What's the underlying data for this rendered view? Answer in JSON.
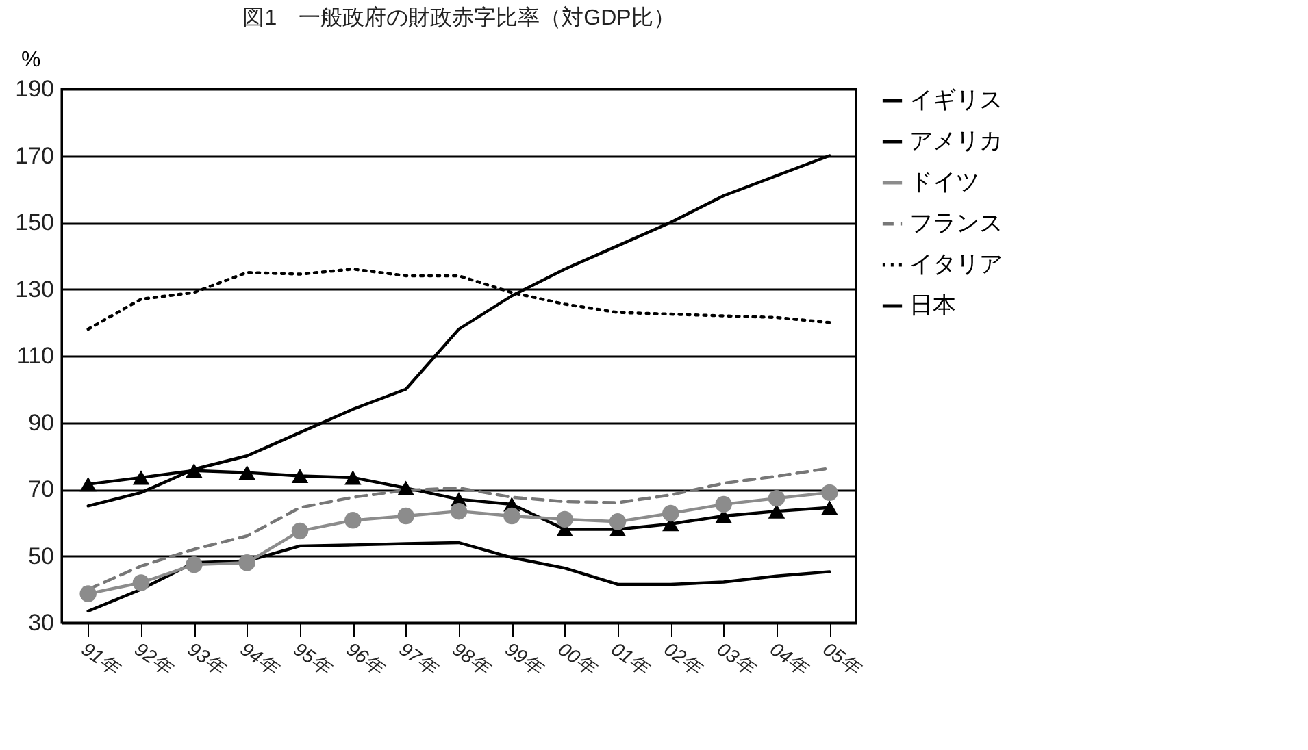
{
  "chart_data": {
    "type": "line",
    "title": "図1　一般政府の財政赤字比率（対GDP比）",
    "ylabel": "%",
    "categories": [
      "91年",
      "92年",
      "93年",
      "94年",
      "95年",
      "96年",
      "97年",
      "98年",
      "99年",
      "00年",
      "01年",
      "02年",
      "03年",
      "04年",
      "05年"
    ],
    "ylim": [
      30,
      190
    ],
    "yticks": [
      30,
      50,
      70,
      90,
      110,
      130,
      150,
      170,
      190
    ],
    "grid": "y",
    "legend": "right",
    "series": [
      {
        "name": "イギリス",
        "color": "#000000",
        "values": [
          33.5,
          40,
          48,
          48.5,
          53,
          53.3,
          53.7,
          54,
          49.5,
          46.4,
          41.5,
          41.5,
          42.2,
          44,
          45.3
        ]
      },
      {
        "name": "アメリカ",
        "color": "#000000",
        "marker": "triangle",
        "values": [
          71.5,
          73.5,
          75.6,
          75,
          74,
          73.5,
          70.4,
          67,
          65.5,
          58,
          58,
          59.6,
          62,
          63.4,
          64.5
        ]
      },
      {
        "name": "ドイツ",
        "color": "#8c8c8c",
        "marker": "circle",
        "values": [
          38.7,
          42,
          47.4,
          48,
          57.5,
          60.7,
          62,
          63.4,
          62,
          61,
          60.3,
          62.8,
          65.5,
          67.3,
          69
        ]
      },
      {
        "name": "フランス",
        "color": "#777777",
        "line_style": "dashed",
        "values": [
          40,
          47,
          52,
          56,
          64.5,
          67.6,
          69.7,
          70.4,
          67.6,
          66.3,
          66,
          68.3,
          71.8,
          73.9,
          76.3
        ]
      },
      {
        "name": "イタリア",
        "color": "#000000",
        "line_style": "dotted",
        "values": [
          118,
          127,
          129,
          135,
          134.5,
          136,
          134,
          134,
          129,
          125.5,
          123,
          122.5,
          122,
          121.5,
          120
        ]
      },
      {
        "name": "日本",
        "color": "#000000",
        "values": [
          65,
          69,
          76,
          80,
          87,
          94,
          100,
          118,
          128,
          136,
          143,
          150,
          158,
          164,
          170
        ]
      }
    ]
  }
}
